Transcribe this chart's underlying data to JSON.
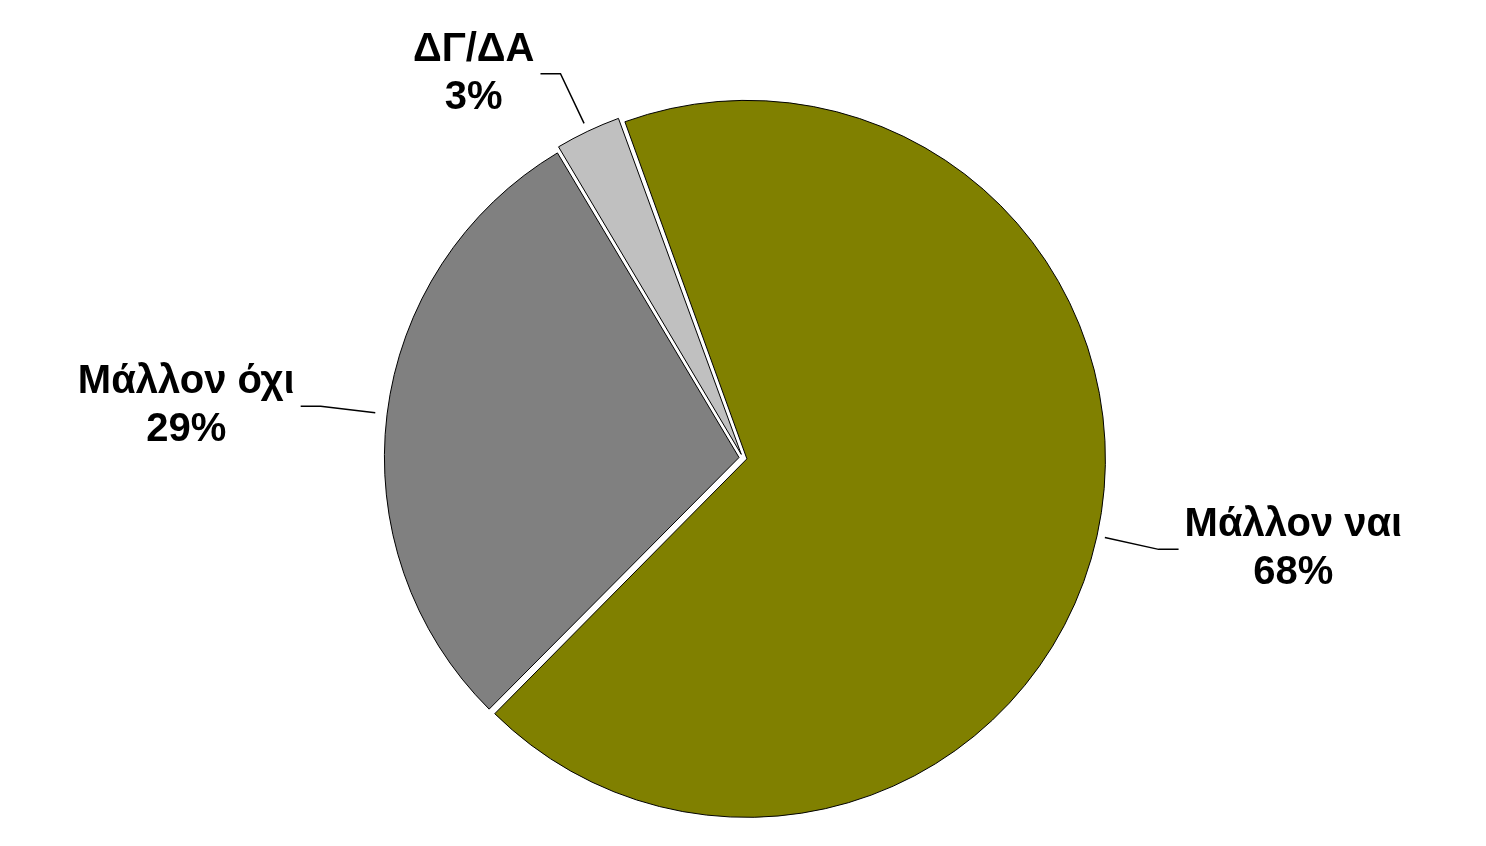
{
  "chart_data": {
    "type": "pie",
    "categories": [
      "Μάλλον ναι",
      "Μάλλον όχι",
      "ΔΓ/ΔΑ"
    ],
    "values": [
      68,
      29,
      3
    ],
    "colors": [
      "#808000",
      "#808080",
      "#c0c0c0"
    ],
    "value_labels": [
      "68%",
      "29%",
      "3%"
    ],
    "legend": false
  }
}
